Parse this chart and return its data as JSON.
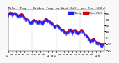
{
  "title": "Milw  Temp  Outdoor Temp",
  "title_fontsize": 3.5,
  "background_color": "#f8f8f8",
  "plot_bg_color": "#ffffff",
  "bar_color": "#1a1aff",
  "line_color": "#dd0000",
  "legend_blue_color": "#1a1aff",
  "legend_red_color": "#dd0000",
  "ylim": [
    -22,
    46
  ],
  "xlim": [
    0,
    1440
  ],
  "ylabel_fontsize": 3.2,
  "tick_fontsize": 2.8,
  "grid_color": "#888888",
  "yticks": [
    40,
    30,
    20,
    10,
    0,
    -10,
    -20
  ],
  "num_minutes": 1440,
  "legend_label_temp": "Temp",
  "legend_label_wind": "Wind Chill",
  "seed": 12345
}
